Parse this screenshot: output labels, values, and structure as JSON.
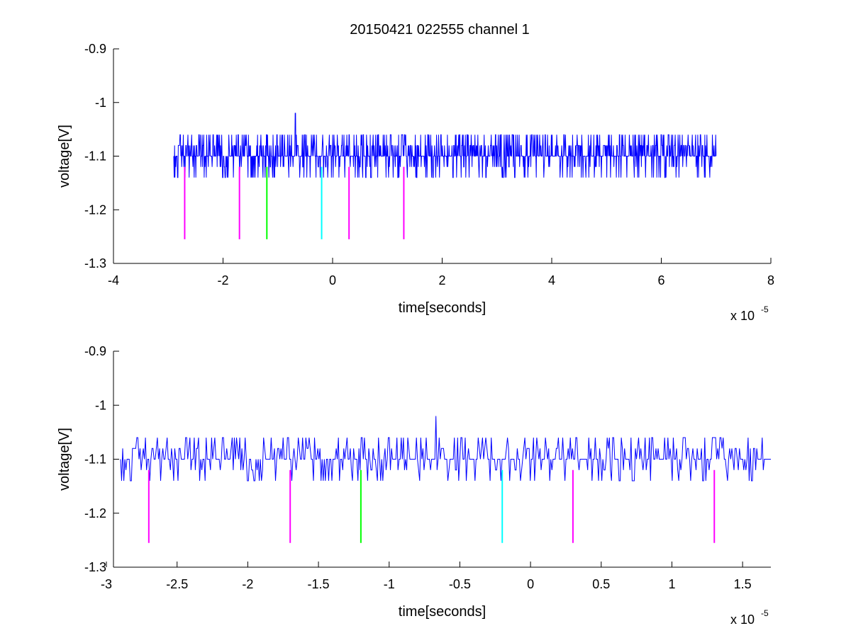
{
  "figure": {
    "title": "20150421 022555 channel 1"
  },
  "colors": {
    "signal": "#0000ff",
    "axis": "#000000",
    "marker_magenta": "#ff00ff",
    "marker_green": "#00ff00",
    "marker_cyan": "#00ffff"
  },
  "chart_data": [
    {
      "type": "line",
      "title": "20150421 022555 channel 1",
      "xlabel": "time[seconds]",
      "ylabel": "voltage[V]",
      "x_multiplier_base": "x 10",
      "x_multiplier_exp": "-5",
      "xlim": [
        -4,
        8
      ],
      "ylim": [
        -1.3,
        -0.9
      ],
      "x_ticks": [
        -4,
        -2,
        0,
        2,
        4,
        6,
        8
      ],
      "x_tick_labels": [
        "-4",
        "-2",
        "0",
        "2",
        "4",
        "6",
        "8"
      ],
      "y_ticks": [
        -0.9,
        -1.0,
        -1.1,
        -1.2,
        -1.3
      ],
      "y_tick_labels": [
        "-0.9",
        "-1",
        "-1.1",
        "-1.2",
        "-1.3"
      ],
      "grid": false,
      "signal": {
        "x_range": [
          -2.9,
          7.0
        ],
        "baseline": -1.1,
        "levels": [
          -1.14,
          -1.12,
          -1.1,
          -1.08,
          -1.06
        ],
        "peak": {
          "x": -0.68,
          "y": -1.02
        },
        "seed": 7,
        "samples": 1300
      },
      "markers": [
        {
          "x": -2.7,
          "y_top": -1.12,
          "y_bottom": -1.255,
          "color": "#ff00ff"
        },
        {
          "x": -1.7,
          "y_top": -1.12,
          "y_bottom": -1.255,
          "color": "#ff00ff"
        },
        {
          "x": -1.2,
          "y_top": -1.12,
          "y_bottom": -1.255,
          "color": "#00ff00"
        },
        {
          "x": -0.2,
          "y_top": -1.12,
          "y_bottom": -1.255,
          "color": "#00ffff"
        },
        {
          "x": 0.3,
          "y_top": -1.12,
          "y_bottom": -1.255,
          "color": "#ff00ff"
        },
        {
          "x": 1.3,
          "y_top": -1.12,
          "y_bottom": -1.255,
          "color": "#ff00ff"
        }
      ]
    },
    {
      "type": "line",
      "title": "",
      "xlabel": "time[seconds]",
      "ylabel": "voltage[V]",
      "x_multiplier_base": "x 10",
      "x_multiplier_exp": "-5",
      "xlim": [
        -2.95,
        1.7
      ],
      "ylim": [
        -1.3,
        -0.9
      ],
      "x_ticks": [
        -3,
        -2.5,
        -2,
        -1.5,
        -1,
        -0.5,
        0,
        0.5,
        1,
        1.5
      ],
      "x_tick_labels": [
        "-3",
        "-2.5",
        "-2",
        "-1.5",
        "-1",
        "-0.5",
        "0",
        "0.5",
        "1",
        "1.5"
      ],
      "y_ticks": [
        -0.9,
        -1.0,
        -1.1,
        -1.2,
        -1.3
      ],
      "y_tick_labels": [
        "-0.9",
        "-1",
        "-1.1",
        "-1.2",
        "-1.3"
      ],
      "grid": false,
      "signal": {
        "x_range": [
          -2.9,
          1.7
        ],
        "baseline": -1.1,
        "levels": [
          -1.14,
          -1.12,
          -1.1,
          -1.08,
          -1.06
        ],
        "peak": {
          "x": -0.67,
          "y": -1.02
        },
        "seed": 7,
        "samples": 600
      },
      "markers": [
        {
          "x": -2.7,
          "y_top": -1.12,
          "y_bottom": -1.255,
          "color": "#ff00ff"
        },
        {
          "x": -1.7,
          "y_top": -1.12,
          "y_bottom": -1.255,
          "color": "#ff00ff"
        },
        {
          "x": -1.2,
          "y_top": -1.12,
          "y_bottom": -1.255,
          "color": "#00ff00"
        },
        {
          "x": -0.2,
          "y_top": -1.12,
          "y_bottom": -1.255,
          "color": "#00ffff"
        },
        {
          "x": 0.3,
          "y_top": -1.12,
          "y_bottom": -1.255,
          "color": "#ff00ff"
        },
        {
          "x": 1.3,
          "y_top": -1.12,
          "y_bottom": -1.255,
          "color": "#ff00ff"
        }
      ]
    }
  ]
}
